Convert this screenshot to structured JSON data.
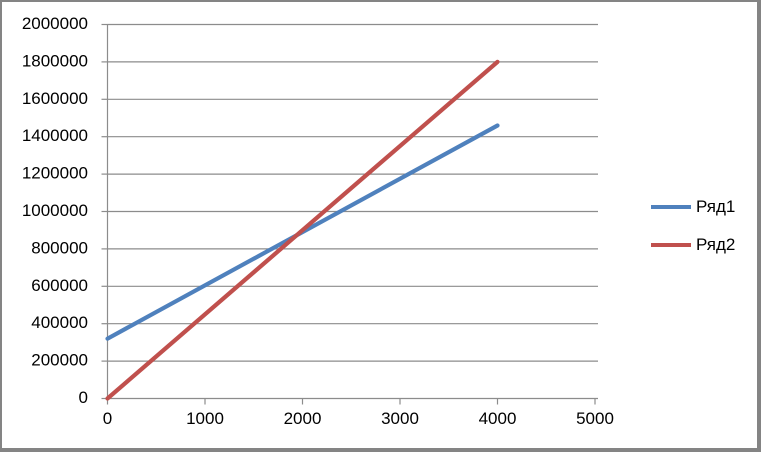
{
  "chart_data": {
    "type": "line",
    "title": "",
    "xlabel": "",
    "ylabel": "",
    "xlim": [
      0,
      5000
    ],
    "ylim": [
      0,
      2000000
    ],
    "x_ticks": [
      0,
      1000,
      2000,
      3000,
      4000,
      5000
    ],
    "y_ticks": [
      0,
      200000,
      400000,
      600000,
      800000,
      1000000,
      1200000,
      1400000,
      1600000,
      1800000,
      2000000
    ],
    "grid": "horizontal",
    "legend_position": "right",
    "series": [
      {
        "name": "Ряд1",
        "color": "#4F81BD",
        "points": [
          [
            0,
            320000
          ],
          [
            4000,
            1460000
          ]
        ]
      },
      {
        "name": "Ряд2",
        "color": "#C0504D",
        "points": [
          [
            0,
            0
          ],
          [
            4000,
            1800000
          ]
        ]
      }
    ]
  },
  "styles": {
    "background": "#FFFFFF",
    "border_color": "#848484",
    "gridline_color": "#8C8C8C",
    "axis_color": "#8C8C8C",
    "text_color": "#000000"
  }
}
